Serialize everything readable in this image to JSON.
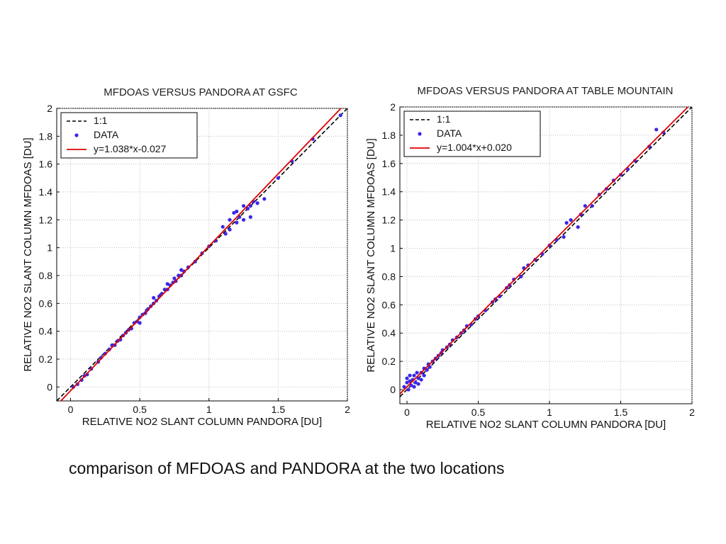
{
  "colors": {
    "data_points": "#3a28e6",
    "fit_line": "#e00000",
    "one_to_one_line": "#000000",
    "grid": "#bdbdbd"
  },
  "caption": "comparison of MFDOAS and PANDORA at the two locations",
  "chart_data": [
    {
      "type": "scatter",
      "title": "MFDOAS VERSUS PANDORA AT GSFC",
      "xlabel": "RELATIVE NO2 SLANT COLUMN PANDORA [DU]",
      "ylabel": "RELATIVE NO2 SLANT COLUMN MFDOAS [DU]",
      "xlim": [
        -0.1,
        2
      ],
      "ylim": [
        -0.1,
        2
      ],
      "xticks": [
        0,
        0.5,
        1,
        1.5,
        2
      ],
      "xtick_labels": [
        "0",
        "0.5",
        "1",
        "1.5",
        "2"
      ],
      "yticks": [
        0,
        0.2,
        0.4,
        0.6,
        0.8,
        1,
        1.2,
        1.4,
        1.6,
        1.8,
        2
      ],
      "ytick_labels": [
        "0",
        "0.2",
        "0.4",
        "0.6",
        "0.8",
        "1",
        "1.2",
        "1.4",
        "1.6",
        "1.8",
        "2"
      ],
      "grid": true,
      "legend_position": "top-left",
      "legend": [
        "1:1",
        "DATA",
        "y=1.038*x-0.027"
      ],
      "lines": {
        "one_to_one": {
          "slope": 1,
          "intercept": 0
        },
        "fit": {
          "slope": 1.038,
          "intercept": -0.027
        }
      },
      "series": [
        {
          "name": "DATA",
          "x": [
            0.02,
            0.05,
            0.08,
            0.1,
            0.12,
            0.15,
            0.2,
            0.22,
            0.25,
            0.28,
            0.3,
            0.32,
            0.34,
            0.36,
            0.38,
            0.4,
            0.42,
            0.44,
            0.46,
            0.48,
            0.5,
            0.5,
            0.52,
            0.54,
            0.55,
            0.56,
            0.58,
            0.6,
            0.6,
            0.62,
            0.64,
            0.65,
            0.66,
            0.68,
            0.7,
            0.7,
            0.72,
            0.74,
            0.75,
            0.76,
            0.78,
            0.8,
            0.8,
            0.82,
            0.85,
            0.9,
            0.95,
            1.0,
            1.05,
            1.1,
            1.12,
            1.15,
            1.15,
            1.18,
            1.2,
            1.2,
            1.22,
            1.25,
            1.25,
            1.28,
            1.3,
            1.3,
            1.32,
            1.35,
            1.4,
            1.5,
            1.6,
            1.75,
            1.95
          ],
          "y": [
            0.0,
            0.02,
            0.05,
            0.08,
            0.09,
            0.13,
            0.18,
            0.21,
            0.24,
            0.27,
            0.3,
            0.3,
            0.33,
            0.34,
            0.37,
            0.39,
            0.41,
            0.42,
            0.46,
            0.47,
            0.5,
            0.46,
            0.52,
            0.53,
            0.55,
            0.56,
            0.58,
            0.6,
            0.64,
            0.62,
            0.65,
            0.66,
            0.67,
            0.7,
            0.7,
            0.74,
            0.73,
            0.75,
            0.78,
            0.76,
            0.8,
            0.8,
            0.84,
            0.83,
            0.86,
            0.9,
            0.96,
            1.01,
            1.05,
            1.15,
            1.1,
            1.2,
            1.13,
            1.25,
            1.18,
            1.26,
            1.22,
            1.2,
            1.3,
            1.28,
            1.3,
            1.22,
            1.33,
            1.32,
            1.35,
            1.5,
            1.62,
            1.78,
            1.95
          ]
        }
      ]
    },
    {
      "type": "scatter",
      "title": "MFDOAS VERSUS PANDORA AT TABLE MOUNTAIN",
      "xlabel": "RELATIVE NO2 SLANT COLUMN PANDORA [DU]",
      "ylabel": "RELATIVE NO2 SLANT COLUMN MFDOAS [DU]",
      "xlim": [
        -0.05,
        2
      ],
      "ylim": [
        -0.1,
        2
      ],
      "xticks": [
        0,
        0.5,
        1,
        1.5,
        2
      ],
      "xtick_labels": [
        "0",
        "0.5",
        "1",
        "1.5",
        "2"
      ],
      "yticks": [
        0,
        0.2,
        0.4,
        0.6,
        0.8,
        1,
        1.2,
        1.4,
        1.6,
        1.8,
        2
      ],
      "ytick_labels": [
        "0",
        "0.2",
        "0.4",
        "0.6",
        "0.8",
        "1",
        "1.2",
        "1.4",
        "1.6",
        "1.8",
        "2"
      ],
      "grid": true,
      "legend_position": "top-left",
      "legend": [
        "1:1",
        "DATA",
        "y=1.004*x+0.020"
      ],
      "lines": {
        "one_to_one": {
          "slope": 1,
          "intercept": 0
        },
        "fit": {
          "slope": 1.004,
          "intercept": 0.02
        }
      },
      "series": [
        {
          "name": "DATA",
          "x": [
            -0.02,
            0.0,
            0.0,
            0.01,
            0.02,
            0.02,
            0.03,
            0.04,
            0.05,
            0.05,
            0.06,
            0.07,
            0.08,
            0.08,
            0.1,
            0.1,
            0.12,
            0.12,
            0.14,
            0.15,
            0.16,
            0.18,
            0.2,
            0.22,
            0.24,
            0.25,
            0.28,
            0.3,
            0.32,
            0.35,
            0.38,
            0.4,
            0.42,
            0.45,
            0.48,
            0.5,
            0.55,
            0.6,
            0.62,
            0.65,
            0.7,
            0.72,
            0.75,
            0.8,
            0.82,
            0.85,
            0.9,
            0.95,
            1.0,
            1.05,
            1.1,
            1.12,
            1.15,
            1.2,
            1.22,
            1.25,
            1.3,
            1.35,
            1.4,
            1.45,
            1.5,
            1.55,
            1.6,
            1.7,
            1.75,
            1.8
          ],
          "y": [
            0.02,
            0.05,
            0.08,
            0.0,
            0.06,
            0.1,
            0.03,
            0.07,
            0.02,
            0.1,
            0.05,
            0.12,
            0.08,
            0.04,
            0.12,
            0.07,
            0.15,
            0.1,
            0.14,
            0.18,
            0.16,
            0.2,
            0.22,
            0.24,
            0.26,
            0.28,
            0.3,
            0.32,
            0.35,
            0.37,
            0.4,
            0.42,
            0.45,
            0.46,
            0.5,
            0.52,
            0.56,
            0.62,
            0.64,
            0.66,
            0.72,
            0.74,
            0.78,
            0.8,
            0.86,
            0.88,
            0.92,
            0.96,
            1.02,
            1.06,
            1.08,
            1.18,
            1.2,
            1.15,
            1.24,
            1.3,
            1.3,
            1.38,
            1.42,
            1.48,
            1.52,
            1.56,
            1.62,
            1.72,
            1.84,
            1.82
          ]
        }
      ]
    }
  ]
}
